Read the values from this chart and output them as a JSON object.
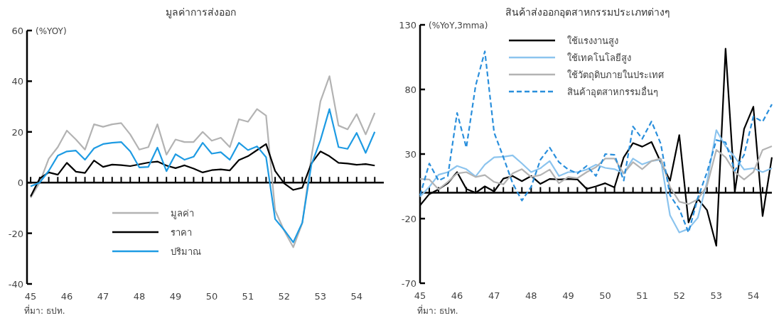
{
  "chart_data": [
    {
      "type": "line",
      "title": "มูลค่าการส่งออก",
      "ylabel": "(%YOY)",
      "annotations": [
        "ที่มา: ธปท."
      ],
      "legend": "bottom left",
      "x": [
        45,
        45.25,
        45.5,
        45.75,
        46,
        46.25,
        46.5,
        46.75,
        47,
        47.25,
        47.5,
        47.75,
        48,
        48.25,
        48.5,
        48.75,
        49,
        49.25,
        49.5,
        49.75,
        50,
        50.25,
        50.5,
        50.75,
        51,
        51.25,
        51.5,
        51.75,
        52,
        52.25,
        52.5,
        52.75,
        53,
        53.25,
        53.5,
        53.75,
        54,
        54.25,
        54.5
      ],
      "xlim": [
        44.9,
        54.75
      ],
      "ylim": [
        -40,
        60
      ],
      "yticks": [
        -40,
        -20,
        0,
        20,
        40,
        60
      ],
      "xticks": [
        45,
        {
          "value": 45.25,
          "label": null
        },
        {
          "value": 45.5,
          "label": null
        },
        {
          "value": 45.75,
          "label": null
        },
        46,
        {
          "value": 46.25,
          "label": null
        },
        {
          "value": 46.5,
          "label": null
        },
        {
          "value": 46.75,
          "label": null
        },
        47,
        {
          "value": 47.25,
          "label": null
        },
        {
          "value": 47.5,
          "label": null
        },
        {
          "value": 47.75,
          "label": null
        },
        48,
        {
          "value": 48.25,
          "label": null
        },
        {
          "value": 48.5,
          "label": null
        },
        {
          "value": 48.75,
          "label": null
        },
        49,
        {
          "value": 49.25,
          "label": null
        },
        {
          "value": 49.5,
          "label": null
        },
        {
          "value": 49.75,
          "label": null
        },
        50,
        {
          "value": 50.25,
          "label": null
        },
        {
          "value": 50.5,
          "label": null
        },
        {
          "value": 50.75,
          "label": null
        },
        51,
        {
          "value": 51.25,
          "label": null
        },
        {
          "value": 51.5,
          "label": null
        },
        {
          "value": 51.75,
          "label": null
        },
        52,
        {
          "value": 52.25,
          "label": null
        },
        {
          "value": 52.5,
          "label": null
        },
        {
          "value": 52.75,
          "label": null
        },
        53,
        {
          "value": 53.25,
          "label": null
        },
        {
          "value": 53.5,
          "label": null
        },
        {
          "value": 53.75,
          "label": null
        },
        54,
        {
          "value": 54.25,
          "label": null
        },
        {
          "value": 54.5,
          "label": null
        }
      ],
      "series": [
        {
          "name": "มูลค่า",
          "color": "#b3b3b3",
          "values": [
            -6,
            0,
            9.4,
            14,
            20.5,
            17,
            13,
            23,
            22,
            23,
            23.5,
            19,
            13,
            14,
            23,
            11,
            17,
            16,
            16,
            20,
            16.5,
            17.7,
            14,
            25,
            24,
            29,
            26.4,
            -11,
            -19,
            -25.5,
            -16,
            10,
            32,
            42,
            22.5,
            21,
            27,
            19,
            27.5
          ]
        },
        {
          "name": "ราคา",
          "color": "#000000",
          "values": [
            -5.5,
            1.6,
            4,
            3.1,
            7.8,
            4.3,
            3.8,
            8.7,
            6.2,
            7.1,
            6.9,
            6.5,
            7.2,
            7.9,
            8.3,
            6.7,
            5.7,
            6.8,
            5.5,
            4,
            4.9,
            5.2,
            4.8,
            8.9,
            10.4,
            12.8,
            15.2,
            4.6,
            -0.3,
            -2.9,
            -2,
            7.5,
            12.3,
            10.4,
            7.8,
            7.5,
            7,
            7.3,
            6.7
          ]
        },
        {
          "name": "ปริมาณ",
          "color": "#1e9be3",
          "values": [
            -1.5,
            0,
            4.6,
            10.6,
            12.3,
            12.6,
            9,
            13.5,
            15.2,
            15.7,
            16,
            12.3,
            6,
            6.2,
            13.8,
            4.5,
            11.2,
            9,
            10.2,
            15.7,
            11.4,
            12,
            9,
            15.7,
            12.8,
            14.3,
            10,
            -14.4,
            -18.7,
            -23.6,
            -15.8,
            7,
            16.7,
            29,
            14,
            13.3,
            19.6,
            11.7,
            20
          ]
        }
      ]
    },
    {
      "type": "line",
      "title": "สินค้าส่งออกอุตสาหกรรมประเภทต่างๆ",
      "ylabel": "(%YoY,3mma)",
      "annotations": [
        "ที่มา: ธปท."
      ],
      "legend": "top",
      "x": [
        45,
        45.25,
        45.5,
        45.75,
        46,
        46.25,
        46.5,
        46.75,
        47,
        47.25,
        47.5,
        47.75,
        48,
        48.25,
        48.5,
        48.75,
        49,
        49.25,
        49.5,
        49.75,
        50,
        50.25,
        50.5,
        50.75,
        51,
        51.25,
        51.5,
        51.75,
        52,
        52.25,
        52.5,
        52.75,
        53,
        53.25,
        53.5,
        53.75,
        54,
        54.25,
        54.5
      ],
      "xlim": [
        45,
        54.5
      ],
      "ylim": [
        -70,
        130
      ],
      "yticks": [
        -70,
        -20,
        30,
        80,
        130
      ],
      "xticks": [
        45,
        {
          "value": 45.25,
          "label": null
        },
        {
          "value": 45.5,
          "label": null
        },
        {
          "value": 45.75,
          "label": null
        },
        46,
        {
          "value": 46.25,
          "label": null
        },
        {
          "value": 46.5,
          "label": null
        },
        {
          "value": 46.75,
          "label": null
        },
        47,
        {
          "value": 47.25,
          "label": null
        },
        {
          "value": 47.5,
          "label": null
        },
        {
          "value": 47.75,
          "label": null
        },
        48,
        {
          "value": 48.25,
          "label": null
        },
        {
          "value": 48.5,
          "label": null
        },
        {
          "value": 48.75,
          "label": null
        },
        49,
        {
          "value": 49.25,
          "label": null
        },
        {
          "value": 49.5,
          "label": null
        },
        {
          "value": 49.75,
          "label": null
        },
        50,
        {
          "value": 50.25,
          "label": null
        },
        {
          "value": 50.5,
          "label": null
        },
        {
          "value": 50.75,
          "label": null
        },
        51,
        {
          "value": 51.25,
          "label": null
        },
        {
          "value": 51.5,
          "label": null
        },
        {
          "value": 51.75,
          "label": null
        },
        52,
        {
          "value": 52.25,
          "label": null
        },
        {
          "value": 52.5,
          "label": null
        },
        {
          "value": 52.75,
          "label": null
        },
        53,
        {
          "value": 53.25,
          "label": null
        },
        {
          "value": 53.5,
          "label": null
        },
        {
          "value": 53.75,
          "label": null
        },
        54,
        {
          "value": 54.25,
          "label": null
        }
      ],
      "series": [
        {
          "name": "ใช้แรงงานสูง",
          "color": "#000000",
          "values": [
            -9.7,
            -1,
            2.7,
            7.4,
            16,
            3,
            0,
            5,
            1,
            11,
            13,
            9,
            13,
            6.9,
            10.7,
            10.3,
            10.7,
            10.3,
            3,
            5,
            7.4,
            4.2,
            27.5,
            38.5,
            35.7,
            39.3,
            23.7,
            9.4,
            44.7,
            -23,
            -4.6,
            -13.5,
            -41,
            111.5,
            0.8,
            49.4,
            66.6,
            -18,
            27.5
          ]
        },
        {
          "name": "ใช้เทคโนโลยีสูง",
          "color": "#8cc4ee",
          "values": [
            -3,
            4.6,
            14,
            16,
            20.8,
            18.3,
            12.6,
            21.8,
            27.5,
            27.9,
            29,
            22.7,
            16,
            19,
            24.6,
            13,
            16,
            16,
            18,
            21.8,
            19.3,
            18.3,
            15,
            26.5,
            22,
            24.6,
            25.6,
            -17.4,
            -30.7,
            -27.9,
            -19.3,
            8.4,
            48.5,
            36,
            27.5,
            18,
            19,
            16,
            19
          ]
        },
        {
          "name": "ใช้วัตถุดิบภายในประเทศ",
          "color": "#b3b3b3",
          "values": [
            10.7,
            10.3,
            2.7,
            8.4,
            15,
            16,
            12.2,
            13.7,
            8.4,
            6.5,
            15,
            18.3,
            12.2,
            13.7,
            18,
            7.4,
            12.2,
            11.3,
            16,
            19.8,
            26.5,
            26.5,
            15,
            23.7,
            18.3,
            24.6,
            26.5,
            4.6,
            -6.9,
            -8.8,
            -5,
            5.5,
            33.2,
            27.5,
            16,
            10.3,
            16,
            33.2,
            36
          ]
        },
        {
          "name": "สินค้าอุตสาหกรรมอื่นๆ",
          "color": "#2a8fdc",
          "line_style": "dashed",
          "values": [
            -2,
            22.7,
            9.4,
            13,
            61.8,
            35,
            82.8,
            109.5,
            46.6,
            27.5,
            7.4,
            -6,
            4.6,
            25.6,
            35,
            23.7,
            18,
            15,
            20.8,
            13,
            30,
            29.4,
            9.4,
            51.3,
            41.8,
            55.2,
            38,
            -2,
            -12.6,
            -30.7,
            -4,
            16,
            40.8,
            39,
            17,
            29.4,
            59,
            55,
            68.5
          ]
        }
      ]
    }
  ]
}
